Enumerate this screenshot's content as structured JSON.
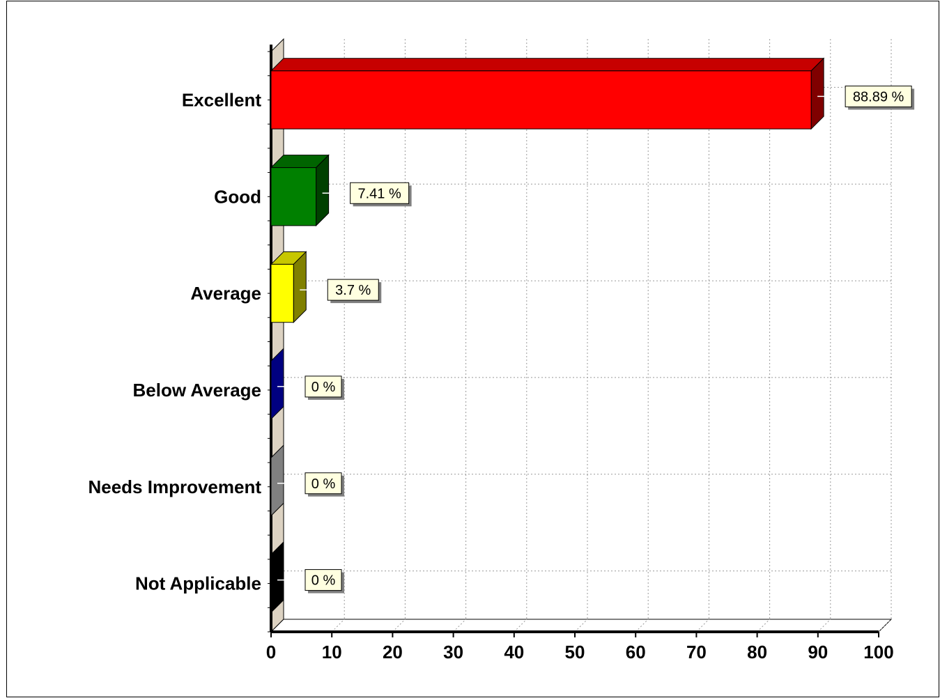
{
  "chart_data": {
    "type": "bar",
    "orientation": "horizontal",
    "title": "",
    "categories": [
      "Excellent",
      "Good",
      "Average",
      "Below Average",
      "Needs Improvement",
      "Not Applicable"
    ],
    "values": [
      88.89,
      7.41,
      3.7,
      0,
      0,
      0
    ],
    "data_labels": [
      "88.89 %",
      "7.41 %",
      "3.7 %",
      "0 %",
      "0 %",
      "0 %"
    ],
    "colors": [
      "#ff0000",
      "#008000",
      "#ffff00",
      "#000080",
      "#808080",
      "#000000"
    ],
    "xlabel": "",
    "ylabel": "",
    "xlim": [
      0,
      100
    ],
    "xticks": [
      "0",
      "10",
      "20",
      "30",
      "40",
      "50",
      "60",
      "70",
      "80",
      "90",
      "100"
    ],
    "grid": true,
    "legend": "none",
    "style": "3d"
  }
}
